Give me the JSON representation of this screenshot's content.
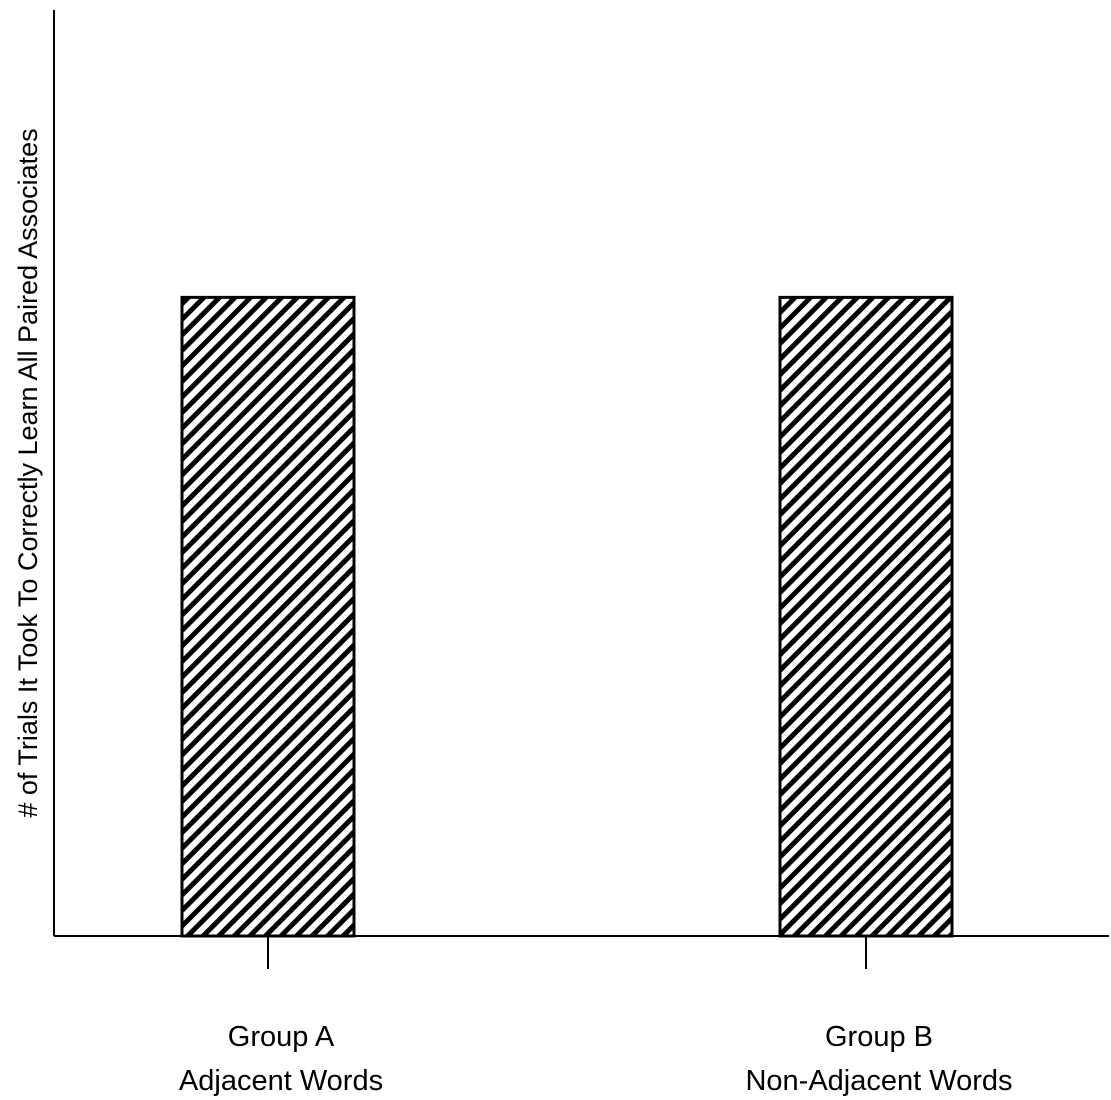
{
  "chart_data": {
    "type": "bar",
    "title": "",
    "xlabel": "",
    "ylabel": "# of Trials It Took To Correctly Learn All Paired Associates",
    "categories": [
      [
        "Group A",
        "Adjacent Words"
      ],
      [
        "Group B",
        "Non-Adjacent Words"
      ]
    ],
    "values": [
      1,
      1
    ],
    "ylim": [
      0,
      1.45
    ],
    "grid": false,
    "legend": "none",
    "bar_fill": "diagonal hatch",
    "colors": {
      "bar_stroke": "#000000",
      "hatch": "#000000",
      "background": "#ffffff"
    }
  }
}
